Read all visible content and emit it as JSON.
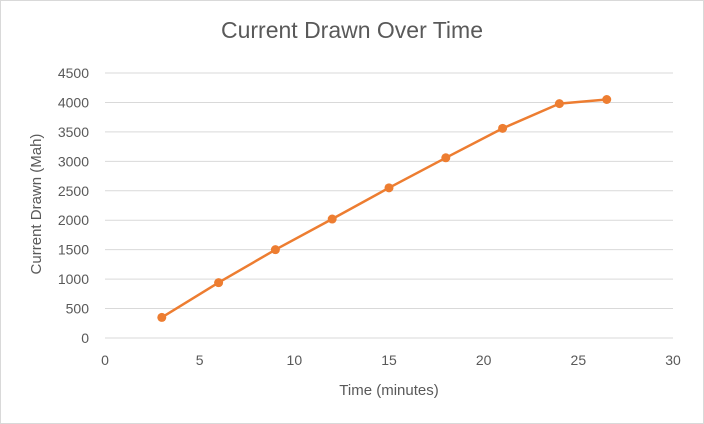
{
  "chart_data": {
    "type": "scatter",
    "title": "Current Drawn Over Time",
    "xlabel": "Time (minutes)",
    "ylabel": "Current Drawn (Mah)",
    "xlim": [
      0,
      30
    ],
    "ylim": [
      0,
      4500
    ],
    "x_ticks": [
      0,
      5,
      10,
      15,
      20,
      25,
      30
    ],
    "y_ticks": [
      0,
      500,
      1000,
      1500,
      2000,
      2500,
      3000,
      3500,
      4000,
      4500
    ],
    "grid": true,
    "series": [
      {
        "x": [
          3,
          6,
          9,
          12,
          15,
          18,
          21,
          24,
          26.5
        ],
        "y": [
          350,
          940,
          1500,
          2020,
          2550,
          3060,
          3560,
          3980,
          4050
        ]
      }
    ],
    "line_color": "#ED7D31",
    "grid_color": "#d9d9d9",
    "text_color": "#595959"
  }
}
